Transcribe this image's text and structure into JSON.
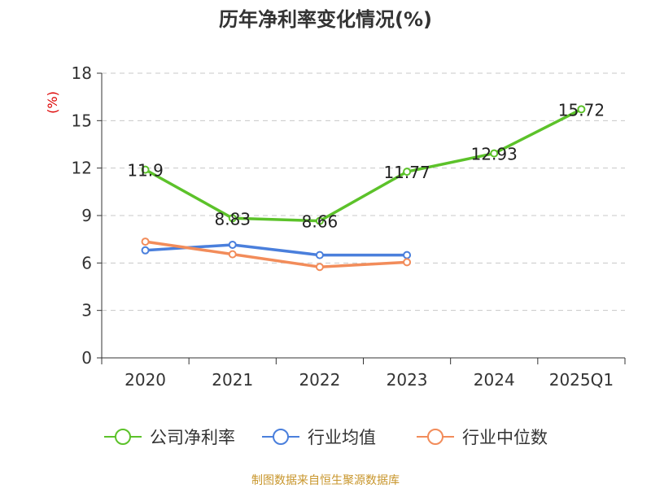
{
  "chart_data": {
    "type": "line",
    "title": "历年净利率变化情况(%)",
    "ylabel": "(%)",
    "xlabel": "",
    "categories": [
      "2020",
      "2021",
      "2022",
      "2023",
      "2024",
      "2025Q1"
    ],
    "ylim": [
      0,
      18
    ],
    "yticks": [
      0,
      3,
      6,
      9,
      12,
      15,
      18
    ],
    "grid": true,
    "legend_position": "bottom",
    "series": [
      {
        "name": "公司净利率",
        "color": "#5cc22a",
        "values": [
          11.9,
          8.83,
          8.66,
          11.77,
          12.93,
          15.72
        ],
        "labels": [
          "11.9",
          "8.83",
          "8.66",
          "11.77",
          "12.93",
          "15.72"
        ]
      },
      {
        "name": "行业均值",
        "color": "#4a7fdc",
        "values": [
          6.8,
          7.15,
          6.5,
          6.5,
          null,
          null
        ]
      },
      {
        "name": "行业中位数",
        "color": "#f28c5a",
        "values": [
          7.35,
          6.55,
          5.75,
          6.05,
          null,
          null
        ]
      }
    ],
    "source": "制图数据来自恒生聚源数据库"
  }
}
